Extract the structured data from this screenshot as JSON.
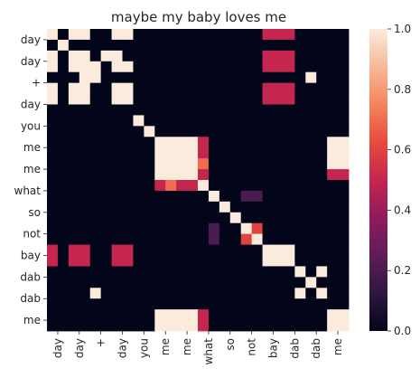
{
  "chart_data": {
    "type": "heatmap",
    "title": "maybe my baby loves me",
    "xlabel": "",
    "ylabel": "",
    "x_labels": [
      "day",
      "day",
      "+",
      "day",
      "you",
      "me",
      "me",
      "what",
      "so",
      "not",
      "bay",
      "dab",
      "dab",
      "me"
    ],
    "y_labels": [
      "day",
      "day",
      "+",
      "day",
      "you",
      "me",
      "me",
      "what",
      "so",
      "not",
      "bay",
      "dab",
      "dab",
      "me"
    ],
    "fine_cells_per_label": 2,
    "colorbar": {
      "min": 0.0,
      "max": 1.0,
      "ticks": [
        "0.0",
        "0.2",
        "0.4",
        "0.6",
        "0.8",
        "1.0"
      ]
    },
    "colormap": [
      "#03051a",
      "#2e1740",
      "#5f1c58",
      "#921a5c",
      "#c4264f",
      "#e84a3e",
      "#f5845c",
      "#f8b998",
      "#faebdd"
    ],
    "matrix": [
      [
        1,
        0,
        1,
        1,
        0,
        0,
        1,
        1,
        0,
        0,
        0,
        0,
        0,
        0,
        0,
        0,
        0,
        0,
        0,
        0,
        0.5,
        0.5,
        0.5,
        0,
        0,
        0,
        0,
        0
      ],
      [
        0,
        1,
        0,
        0,
        0,
        0,
        0,
        0,
        0,
        0,
        0,
        0,
        0,
        0,
        0,
        0,
        0,
        0,
        0,
        0,
        0,
        0,
        0,
        0,
        0,
        0,
        0,
        0
      ],
      [
        1,
        0,
        1,
        1,
        0,
        1,
        1,
        0,
        0,
        0,
        0,
        0,
        0,
        0,
        0,
        0,
        0,
        0,
        0,
        0,
        0.5,
        0.5,
        0.5,
        0,
        0,
        0,
        0,
        0
      ],
      [
        1,
        0,
        1,
        1,
        1,
        0,
        1,
        1,
        0,
        0,
        0,
        0,
        0,
        0,
        0,
        0,
        0,
        0,
        0,
        0,
        0.5,
        0.5,
        0.5,
        0,
        0,
        0,
        0,
        0
      ],
      [
        0,
        0,
        0,
        1,
        1,
        0,
        0,
        0,
        0,
        0,
        0,
        0,
        0,
        0,
        0,
        0,
        0,
        0,
        0,
        0,
        0,
        0,
        0,
        0,
        1,
        0,
        0,
        0
      ],
      [
        1,
        0,
        1,
        1,
        0,
        0,
        1,
        1,
        0,
        0,
        0,
        0,
        0,
        0,
        0,
        0,
        0,
        0,
        0,
        0,
        0.5,
        0.5,
        0.5,
        0,
        0,
        0,
        0,
        0
      ],
      [
        1,
        0,
        1,
        1,
        0,
        0,
        1,
        1,
        0,
        0,
        0,
        0,
        0,
        0,
        0,
        0,
        0,
        0,
        0,
        0,
        0.5,
        0.5,
        0.5,
        0,
        0,
        0,
        0,
        0
      ],
      [
        0,
        0,
        0,
        0,
        0,
        0,
        0,
        0,
        0,
        0,
        0,
        0,
        0,
        0,
        0,
        0,
        0,
        0,
        0,
        0,
        0,
        0,
        0,
        0,
        0,
        0,
        0,
        0
      ],
      [
        0,
        0,
        0,
        0,
        0,
        0,
        0,
        0,
        1,
        0,
        0,
        0,
        0,
        0,
        0,
        0,
        0,
        0,
        0,
        0,
        0,
        0,
        0,
        0,
        0,
        0,
        0,
        0
      ],
      [
        0,
        0,
        0,
        0,
        0,
        0,
        0,
        0,
        0,
        1,
        0,
        0,
        0,
        0,
        0,
        0,
        0,
        0,
        0,
        0,
        0,
        0,
        0,
        0,
        0,
        0,
        0,
        0
      ],
      [
        0,
        0,
        0,
        0,
        0,
        0,
        0,
        0,
        0,
        0,
        1,
        1,
        1,
        1,
        0.5,
        0,
        0,
        0,
        0,
        0,
        0,
        0,
        0,
        0,
        0,
        0,
        1,
        1
      ],
      [
        0,
        0,
        0,
        0,
        0,
        0,
        0,
        0,
        0,
        0,
        1,
        1,
        1,
        1,
        0.5,
        0,
        0,
        0,
        0,
        0,
        0,
        0,
        0,
        0,
        0,
        0,
        1,
        1
      ],
      [
        0,
        0,
        0,
        0,
        0,
        0,
        0,
        0,
        0,
        0,
        1,
        1,
        1,
        1,
        0.7,
        0,
        0,
        0,
        0,
        0,
        0,
        0,
        0,
        0,
        0,
        0,
        1,
        1
      ],
      [
        0,
        0,
        0,
        0,
        0,
        0,
        0,
        0,
        0,
        0,
        1,
        1,
        1,
        1,
        0.5,
        0,
        0,
        0,
        0,
        0,
        0,
        0,
        0,
        0,
        0,
        0,
        0.5,
        0.5
      ],
      [
        0,
        0,
        0,
        0,
        0,
        0,
        0,
        0,
        0,
        0,
        0.5,
        0.7,
        0.5,
        0.5,
        1,
        0,
        0,
        0,
        0,
        0,
        0,
        0,
        0,
        0,
        0,
        0,
        0,
        0
      ],
      [
        0,
        0,
        0,
        0,
        0,
        0,
        0,
        0,
        0,
        0,
        0,
        0,
        0,
        0,
        0,
        1,
        0,
        0,
        0.2,
        0.2,
        0,
        0,
        0,
        0,
        0,
        0,
        0,
        0
      ],
      [
        0,
        0,
        0,
        0,
        0,
        0,
        0,
        0,
        0,
        0,
        0,
        0,
        0,
        0,
        0,
        0,
        1,
        0,
        0,
        0,
        0,
        0,
        0,
        0,
        0,
        0,
        0,
        0
      ],
      [
        0,
        0,
        0,
        0,
        0,
        0,
        0,
        0,
        0,
        0,
        0,
        0,
        0,
        0,
        0,
        0,
        0,
        1,
        0,
        0,
        0,
        0,
        0,
        0,
        0,
        0,
        0,
        0
      ],
      [
        0,
        0,
        0,
        0,
        0,
        0,
        0,
        0,
        0,
        0,
        0,
        0,
        0,
        0,
        0,
        0.2,
        0,
        0,
        1,
        0.6,
        0,
        0,
        0,
        0,
        0,
        0,
        0,
        0
      ],
      [
        0,
        0,
        0,
        0,
        0,
        0,
        0,
        0,
        0,
        0,
        0,
        0,
        0,
        0,
        0,
        0.2,
        0,
        0,
        0.6,
        1,
        0,
        0,
        0,
        0,
        0,
        0,
        0,
        0
      ],
      [
        0.5,
        0,
        0.5,
        0.5,
        0,
        0,
        0.5,
        0.5,
        0,
        0,
        0,
        0,
        0,
        0,
        0,
        0,
        0,
        0,
        0,
        0,
        1,
        1,
        1,
        0,
        0,
        0,
        0,
        0
      ],
      [
        0.5,
        0,
        0.5,
        0.5,
        0,
        0,
        0.5,
        0.5,
        0,
        0,
        0,
        0,
        0,
        0,
        0,
        0,
        0,
        0,
        0,
        0,
        1,
        1,
        1,
        0,
        0,
        0,
        0,
        0
      ],
      [
        0,
        0,
        0,
        0,
        0,
        0,
        0,
        0,
        0,
        0,
        0,
        0,
        0,
        0,
        0,
        0,
        0,
        0,
        0,
        0,
        0,
        0,
        0,
        1,
        0,
        1,
        0,
        0
      ],
      [
        0,
        0,
        0,
        0,
        0,
        0,
        0,
        0,
        0,
        0,
        0,
        0,
        0,
        0,
        0,
        0,
        0,
        0,
        0,
        0,
        0,
        0,
        0,
        0,
        1,
        0,
        0,
        0
      ],
      [
        0,
        0,
        0,
        0,
        1,
        0,
        0,
        0,
        0,
        0,
        0,
        0,
        0,
        0,
        0,
        0,
        0,
        0,
        0,
        0,
        0,
        0,
        0,
        1,
        0,
        1,
        0,
        0
      ],
      [
        0,
        0,
        0,
        0,
        0,
        0,
        0,
        0,
        0,
        0,
        0,
        0,
        0,
        0,
        0,
        0,
        0,
        0,
        0,
        0,
        0,
        0,
        0,
        0,
        0,
        0,
        0,
        0
      ],
      [
        0,
        0,
        0,
        0,
        0,
        0,
        0,
        0,
        0,
        0,
        1,
        1,
        1,
        1,
        0.5,
        0,
        0,
        0,
        0,
        0,
        0,
        0,
        0,
        0,
        0,
        0,
        1,
        1
      ],
      [
        0,
        0,
        0,
        0,
        0,
        0,
        0,
        0,
        0,
        0,
        1,
        1,
        1,
        1,
        0.5,
        0,
        0,
        0,
        0,
        0,
        0,
        0,
        0,
        0,
        0,
        0,
        1,
        1
      ]
    ]
  }
}
